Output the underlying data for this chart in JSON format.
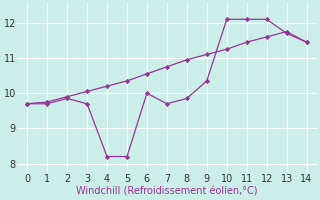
{
  "xlabel": "Windchill (Refroidissement éolien,°C)",
  "bg_color": "#cceee8",
  "grid_color": "#ffffff",
  "line_color": "#993399",
  "line1_x": [
    0,
    1,
    2,
    3,
    4,
    5,
    6,
    7,
    8,
    9,
    10,
    11,
    12,
    13,
    14
  ],
  "line1_y": [
    9.7,
    9.7,
    9.85,
    9.7,
    8.2,
    8.2,
    10.0,
    9.7,
    9.85,
    10.35,
    12.1,
    12.1,
    12.1,
    11.7,
    11.45
  ],
  "line2_x": [
    0,
    1,
    2,
    3,
    4,
    5,
    6,
    7,
    8,
    9,
    10,
    11,
    12,
    13,
    14
  ],
  "line2_y": [
    9.7,
    9.75,
    9.9,
    10.05,
    10.2,
    10.35,
    10.55,
    10.75,
    10.95,
    11.1,
    11.25,
    11.45,
    11.6,
    11.75,
    11.45
  ],
  "xlim": [
    -0.5,
    14.5
  ],
  "ylim": [
    7.75,
    12.55
  ],
  "yticks": [
    8,
    9,
    10,
    11,
    12
  ],
  "xticks": [
    0,
    1,
    2,
    3,
    4,
    5,
    6,
    7,
    8,
    9,
    10,
    11,
    12,
    13,
    14
  ],
  "tick_fontsize": 7,
  "xlabel_fontsize": 7
}
